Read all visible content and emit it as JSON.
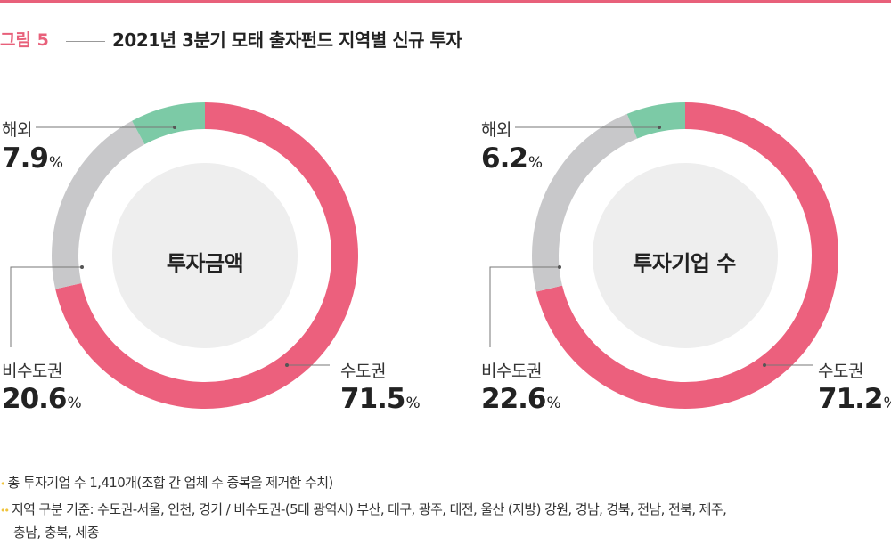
{
  "figure": {
    "label": "그림 5",
    "title": "2021년 3분기 모태 출자펀드 지역별 신규 투자"
  },
  "colors": {
    "accent": "#e8607a",
    "metro": "#ec607d",
    "nonmetro": "#c8c8ca",
    "overseas": "#7ccaa6",
    "hole": "#eeeeee",
    "bullet": "#f0c43c"
  },
  "chart_data": [
    {
      "type": "pie",
      "center_label": "투자금액",
      "title": "",
      "categories": [
        "수도권",
        "비수도권",
        "해외"
      ],
      "values": [
        71.5,
        20.6,
        7.9
      ],
      "unit": "%"
    },
    {
      "type": "pie",
      "center_label": "투자기업 수",
      "title": "",
      "categories": [
        "수도권",
        "비수도권",
        "해외"
      ],
      "values": [
        71.2,
        22.6,
        6.2
      ],
      "unit": "%"
    }
  ],
  "notes": [
    {
      "marker": "•",
      "text": "총 투자기업 수 1,410개(조합 간 업체 수 중복을 제거한 수치)"
    },
    {
      "marker": "••",
      "text": "지역 구분 기준: 수도권-서울, 인천, 경기 / 비수도권-(5대 광역시) 부산, 대구, 광주, 대전, 울산 (지방) 강원, 경남, 경북, 전남, 전북, 제주,"
    },
    {
      "marker": "",
      "text": "충남, 충북, 세종"
    }
  ]
}
